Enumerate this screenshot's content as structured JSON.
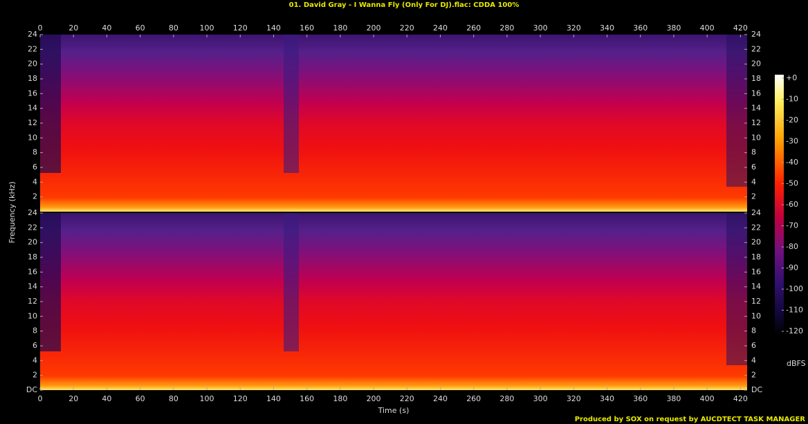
{
  "chart_data": {
    "type": "spectrogram",
    "title": "01. David Gray - I Wanna Fly (Only For DJ).flac: CDDA 100%",
    "xlabel": "Time (s)",
    "ylabel": "Frequency (kHz)",
    "xlim": [
      0,
      424
    ],
    "xticks": [
      0,
      20,
      40,
      60,
      80,
      100,
      120,
      140,
      160,
      180,
      200,
      220,
      240,
      260,
      280,
      300,
      320,
      340,
      360,
      380,
      400,
      420
    ],
    "channels": [
      {
        "ylim": [
          0,
          24
        ],
        "yticks": [
          2,
          4,
          6,
          8,
          10,
          12,
          14,
          16,
          18,
          20,
          22,
          24
        ]
      },
      {
        "ylim": [
          0,
          24
        ],
        "yticks": [
          {
            "value": 0,
            "label": "DC"
          },
          2,
          4,
          6,
          8,
          10,
          12,
          14,
          16,
          18,
          20,
          22,
          24
        ]
      }
    ],
    "colorbar": {
      "label": "dBFS",
      "lim": [
        -120,
        0
      ],
      "ticks": [
        {
          "value": 0,
          "label": "+0"
        },
        -10,
        -20,
        -30,
        -40,
        -50,
        -60,
        -70,
        -80,
        -90,
        -100,
        -110,
        -120
      ]
    },
    "footer": "Produced by SOX on request by AUCDTECT TASK MANAGER"
  }
}
